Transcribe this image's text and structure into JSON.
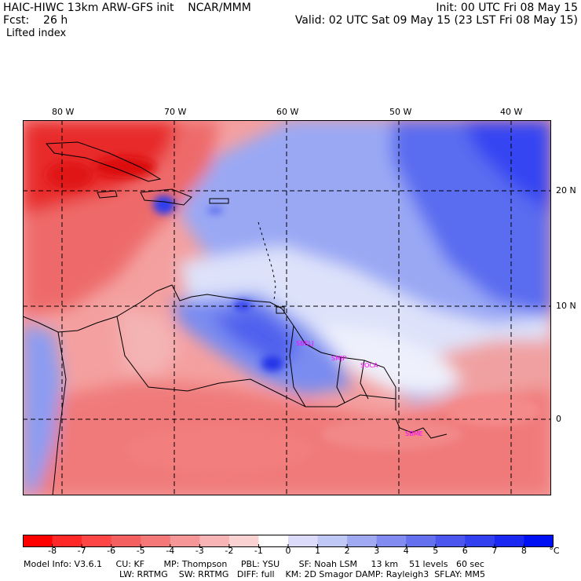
{
  "header": {
    "line1_left": "HAIC-HIWC 13km ARW-GFS init    NCAR/MMM",
    "line1_right": "Init: 00 UTC Fri 08 May 15",
    "line2_left": "Fcst:    26 h",
    "line2_right": "Valid: 02 UTC Sat 09 May 15 (23 LST Fri 08 May 15)",
    "field": "Lifted index"
  },
  "map": {
    "lon_labels": [
      "80 W",
      "70 W",
      "60 W",
      "50 W",
      "40 W"
    ],
    "lat_labels": [
      "20 N",
      "10 N",
      "0"
    ],
    "stations": [
      "SBELJ",
      "SMJP",
      "SOCA",
      "SBME"
    ],
    "colors": {
      "strong_negative": "#e8141c",
      "moderate_negative": "#f08080",
      "weak_negative": "#fbd3d3",
      "neutral": "#ffffff",
      "weak_positive": "#d4dcfa",
      "moderate_positive": "#7a8ef0",
      "strong_positive": "#1a30f0"
    }
  },
  "colorbar": {
    "unit": "°C",
    "tick_labels": [
      "-8",
      "-7",
      "-6",
      "-5",
      "-4",
      "-3",
      "-2",
      "-1",
      "0",
      "1",
      "2",
      "3",
      "4",
      "5",
      "6",
      "7",
      "8"
    ],
    "colors": [
      "#ff0000",
      "#ff2828",
      "#ff4646",
      "#f46060",
      "#f47878",
      "#f69696",
      "#f8b4b4",
      "#fad2d2",
      "#ffffff",
      "#dcdcfa",
      "#c0c8f6",
      "#a0aaf2",
      "#828cf0",
      "#6470ee",
      "#4a56ee",
      "#3240f0",
      "#1a28f2",
      "#0010f4"
    ]
  },
  "info": {
    "line1": "Model Info: V3.6.1     CU: KF       MP: Thompson     PBL: YSU       SF: Noah LSM     13 km    51 levels   60 sec",
    "line2": "LW: RRTMG    SW: RRTMG   DIFF: full    KM: 2D Smagor DAMP: Rayleigh3  SFLAY: MM5"
  }
}
